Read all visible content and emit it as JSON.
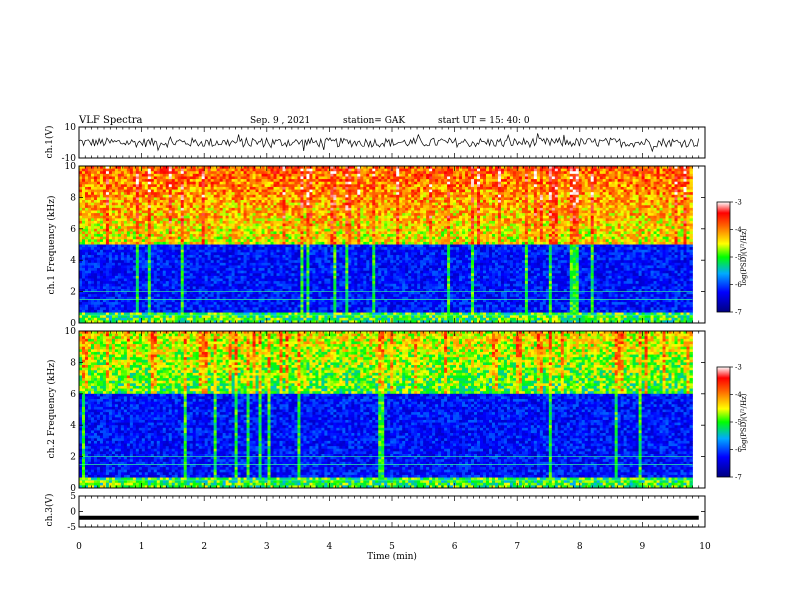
{
  "header": {
    "title": "VLF Spectra",
    "date": "Sep. 9  , 2021",
    "station": "station= GAK",
    "start": "start  UT =   15: 40: 0"
  },
  "chart_data": [
    {
      "type": "line",
      "name": "ch1-waveform",
      "ylabel": "ch.1(V)",
      "ylim": [
        -10,
        10
      ],
      "yticks": [
        "10",
        "-10"
      ],
      "xlim": [
        0,
        10
      ],
      "trace_level_v": 0,
      "trace_spread_v": 6
    },
    {
      "type": "heatmap",
      "name": "ch1-spectrogram",
      "ylabel": "ch.1 Frequency (kHz)",
      "ylim": [
        0,
        10
      ],
      "yticks": [
        "0",
        "2",
        "4",
        "6",
        "8",
        "10"
      ],
      "xlim": [
        0,
        10
      ],
      "data_end_min": 9.8,
      "noise_floor_khz": 5,
      "colorbar": {
        "label": "log(PSD)(V²/Hz)",
        "ticks": [
          "-3",
          "-4",
          "-5",
          "-6",
          "-7"
        ],
        "range": [
          -7,
          -3
        ]
      }
    },
    {
      "type": "heatmap",
      "name": "ch2-spectrogram",
      "ylabel": "ch.2 Frequency (kHz)",
      "ylim": [
        0,
        10
      ],
      "yticks": [
        "0",
        "2",
        "4",
        "6",
        "8",
        "10"
      ],
      "xlim": [
        0,
        10
      ],
      "data_end_min": 9.8,
      "noise_floor_khz": 6,
      "colorbar": {
        "label": "log(PSD)(V²/Hz)",
        "ticks": [
          "-3",
          "-4",
          "-5",
          "-6",
          "-7"
        ],
        "range": [
          -7,
          -3
        ]
      }
    },
    {
      "type": "line",
      "name": "ch3-waveform",
      "ylabel": "ch.3(V)",
      "ylim": [
        -5,
        5
      ],
      "yticks": [
        "5",
        "0",
        "-5"
      ],
      "xlim": [
        0,
        10
      ],
      "trace_level_v": -2
    }
  ],
  "xaxis": {
    "label": "Time  (min)",
    "ticks": [
      "0",
      "1",
      "2",
      "3",
      "4",
      "5",
      "6",
      "7",
      "8",
      "9",
      "10"
    ]
  }
}
